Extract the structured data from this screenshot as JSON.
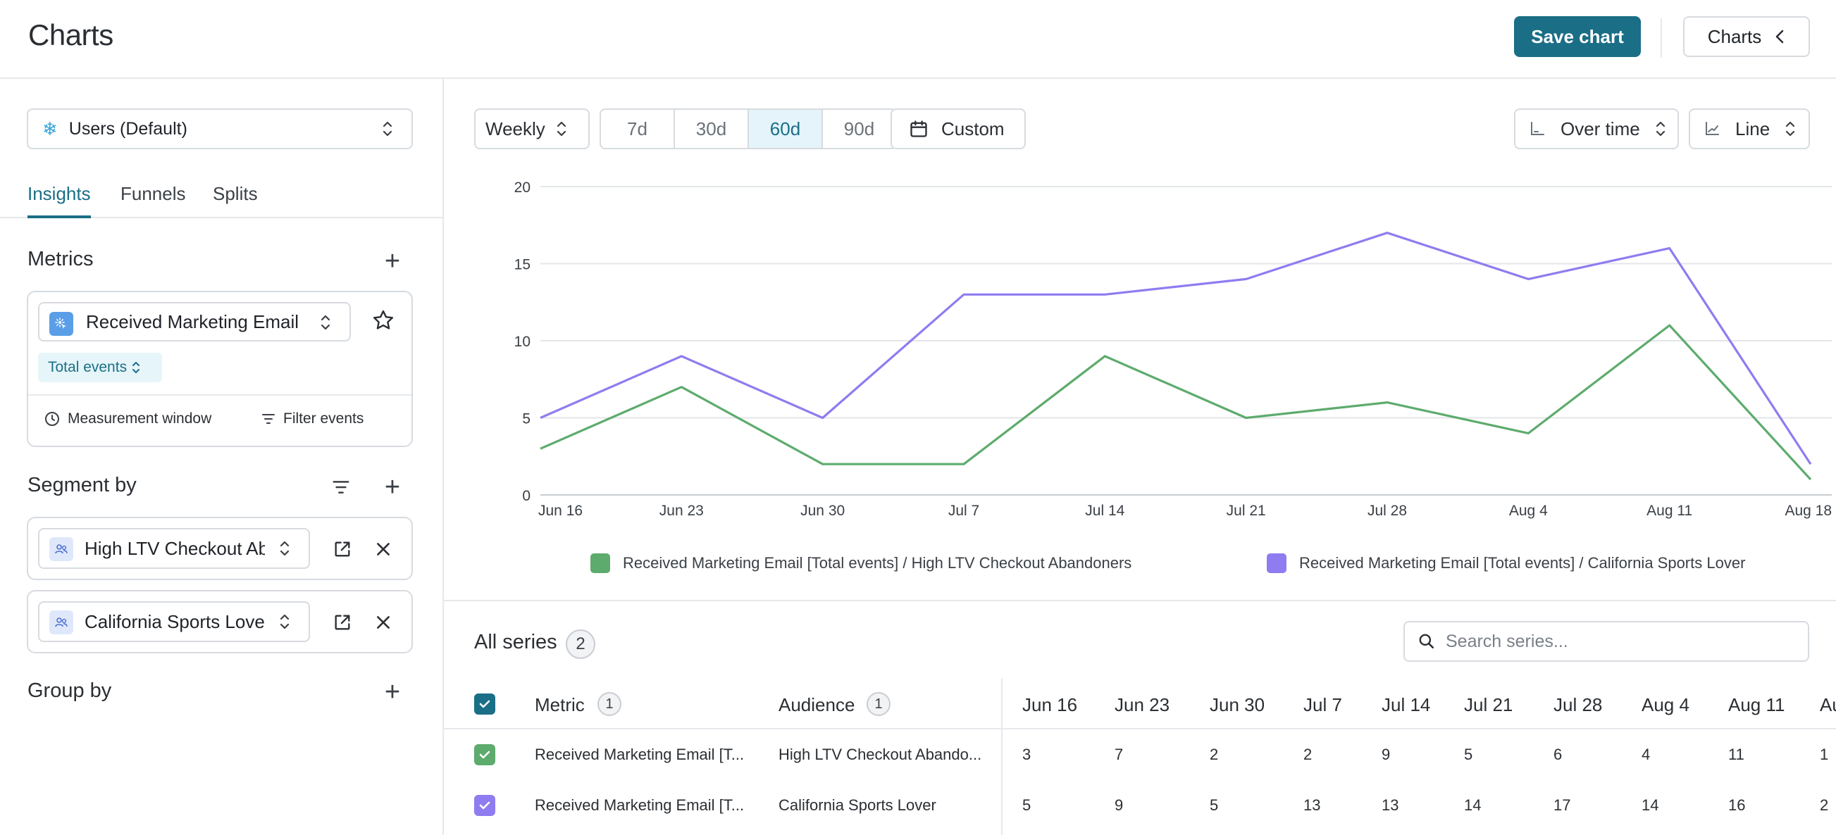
{
  "header": {
    "title": "Charts",
    "save_label": "Save chart",
    "charts_label": "Charts"
  },
  "sidebar": {
    "datasource": "Users (Default)",
    "tabs": [
      "Insights",
      "Funnels",
      "Splits"
    ],
    "metrics_title": "Metrics",
    "metric": {
      "name": "Received Marketing Email",
      "aggregation": "Total events",
      "measurement_window": "Measurement window",
      "filter_events": "Filter events"
    },
    "segment_title": "Segment by",
    "segments": [
      "High LTV Checkout Abandoners",
      "California Sports Lover"
    ],
    "group_title": "Group by"
  },
  "controls": {
    "granularity": "Weekly",
    "ranges": [
      "7d",
      "30d",
      "60d",
      "90d"
    ],
    "active_range": "60d",
    "custom_label": "Custom",
    "view_mode": "Over time",
    "chart_type_label": "Line"
  },
  "chart_data": {
    "type": "line",
    "x": [
      "Jun 16",
      "Jun 23",
      "Jun 30",
      "Jul 7",
      "Jul 14",
      "Jul 21",
      "Jul 28",
      "Aug 4",
      "Aug 11",
      "Aug 18"
    ],
    "ylim": [
      0,
      20
    ],
    "yticks": [
      0,
      5,
      10,
      15,
      20
    ],
    "grid": true,
    "legend_position": "bottom",
    "series": [
      {
        "name": "Received Marketing Email [Total events] / High LTV Checkout Abandoners",
        "color": "#5dab6d",
        "values": [
          3,
          7,
          2,
          2,
          9,
          5,
          6,
          4,
          11,
          1
        ]
      },
      {
        "name": "Received Marketing Email [Total events] / California Sports Lover",
        "color": "#8f7cf0",
        "values": [
          5,
          9,
          5,
          13,
          13,
          14,
          17,
          14,
          16,
          2
        ]
      }
    ]
  },
  "series_table": {
    "title": "All series",
    "count": "2",
    "search_placeholder": "Search series...",
    "metric_header": "Metric",
    "metric_count": "1",
    "audience_header": "Audience",
    "audience_count": "1",
    "date_headers": [
      "Jun 16",
      "Jun 23",
      "Jun 30",
      "Jul 7",
      "Jul 14",
      "Jul 21",
      "Jul 28",
      "Aug 4",
      "Aug 11",
      "Au"
    ],
    "rows": [
      {
        "metric": "Received Marketing Email [T...",
        "audience": "High LTV Checkout Abando...",
        "color": "#5dab6d",
        "values": [
          "3",
          "7",
          "2",
          "2",
          "9",
          "5",
          "6",
          "4",
          "11",
          "1"
        ]
      },
      {
        "metric": "Received Marketing Email [T...",
        "audience": "California Sports Lover",
        "color": "#8f7cf0",
        "values": [
          "5",
          "9",
          "5",
          "13",
          "13",
          "14",
          "17",
          "14",
          "16",
          "2"
        ]
      }
    ]
  },
  "colors": {
    "accent": "#1a6e86",
    "border": "#d7dbe0"
  }
}
